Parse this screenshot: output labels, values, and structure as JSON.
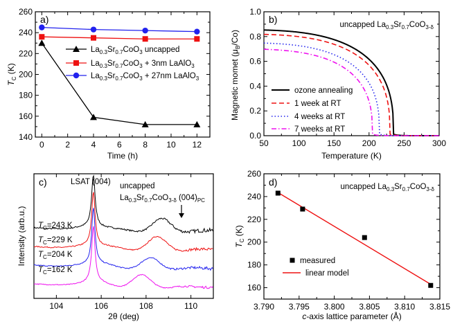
{
  "chart_data": [
    {
      "id": "a",
      "panel_label": "a)",
      "type": "line",
      "xlabel": "Time (h)",
      "ylabel_main": "T",
      "ylabel_sub": "C",
      "ylabel_unit": " (K)",
      "xlim": [
        -0.5,
        13
      ],
      "ylim": [
        140,
        260
      ],
      "xticks": [
        0,
        2,
        4,
        6,
        8,
        10,
        12
      ],
      "yticks": [
        140,
        160,
        180,
        200,
        220,
        240,
        260
      ],
      "x_minor": [
        1,
        3,
        5,
        7,
        9,
        11
      ],
      "y_minor": [
        150,
        170,
        190,
        210,
        230,
        250
      ],
      "legend_loc": "center-right",
      "series": [
        {
          "name": "uncapped",
          "legend_parts": [
            "La",
            "0.3",
            "Sr",
            "0.7",
            "CoO",
            "3",
            "   uncapped"
          ],
          "color": "#000000",
          "marker": "triangle",
          "x": [
            0,
            4,
            8,
            12
          ],
          "y": [
            230,
            159,
            152,
            152
          ]
        },
        {
          "name": "+ 3nm LaAlO3",
          "legend_parts": [
            "La",
            "0.3",
            "Sr",
            "0.7",
            "CoO",
            "3",
            " + 3nm LaAlO",
            "3",
            ""
          ],
          "color": "#ee1111",
          "marker": "square",
          "x": [
            0,
            4,
            8,
            12
          ],
          "y": [
            236,
            235,
            234,
            234
          ]
        },
        {
          "name": "+ 27nm LaAlO3",
          "legend_parts": [
            "La",
            "0.3",
            "Sr",
            "0.7",
            "CoO",
            "3",
            " + 27nm LaAlO",
            "3",
            ""
          ],
          "color": "#2222ee",
          "marker": "circle",
          "x": [
            0,
            4,
            8,
            12
          ],
          "y": [
            245,
            243,
            242,
            241
          ]
        }
      ]
    },
    {
      "id": "b",
      "panel_label": "b)",
      "type": "line",
      "xlabel": "Temperature (K)",
      "ylabel_main": "Magnetic momet (μ",
      "ylabel_sub": "B",
      "ylabel_unit": "/Co)",
      "xlim": [
        50,
        300
      ],
      "ylim": [
        0,
        1.0
      ],
      "xticks": [
        50,
        100,
        150,
        200,
        250,
        300
      ],
      "yticks": [
        0.0,
        0.2,
        0.4,
        0.6,
        0.8,
        1.0
      ],
      "ytick_labels": [
        "0.0",
        "0.2",
        "0.4",
        "0.6",
        "0.8",
        "1.0"
      ],
      "x_minor": [
        75,
        125,
        175,
        225,
        275
      ],
      "y_minor": [
        0.1,
        0.3,
        0.5,
        0.7,
        0.9
      ],
      "annotation_parts": [
        "uncapped La",
        "0.3",
        "Sr",
        "0.7",
        "CoO",
        "3-δ"
      ],
      "legend_loc": "lower-left",
      "series": [
        {
          "name": "ozone annealing",
          "color": "#000000",
          "dash": "solid",
          "Tc": 235,
          "M0": 0.855
        },
        {
          "name": "1 week at RT",
          "color": "#ee1111",
          "dash": "dashed",
          "Tc": 230,
          "M0": 0.82
        },
        {
          "name": "4 weeks at RT",
          "color": "#2222ee",
          "dash": "dotted",
          "Tc": 215,
          "M0": 0.75
        },
        {
          "name": "7 weeks at RT",
          "color": "#ee11ee",
          "dash": "dashdot",
          "Tc": 205,
          "M0": 0.7
        }
      ]
    },
    {
      "id": "c",
      "panel_label": "c)",
      "type": "line",
      "xlabel": "2θ (deg)",
      "ylabel": "Intensity (arb.u.)",
      "xlim": [
        103,
        111
      ],
      "xticks": [
        104,
        106,
        108,
        110
      ],
      "x_minor": [
        103,
        105,
        107,
        109,
        111
      ],
      "y_tick_labels_shown": false,
      "annotation_lsat": "LSAT (004)",
      "annotation_film_line1": "uncapped",
      "annotation_film_parts": [
        "La",
        "0.3",
        "Sr",
        "0.7",
        "CoO",
        "3-δ",
        " (004)",
        "PC"
      ],
      "series": [
        {
          "label_main": "T",
          "label_sub": "C",
          "label_rest": "=243 K",
          "color": "#000000",
          "offset": 3.3,
          "film_peak_2theta": 108.7,
          "film_amp": 0.52,
          "noise": 0.07
        },
        {
          "label_main": "T",
          "label_sub": "C",
          "label_rest": "=229 K",
          "color": "#ee1111",
          "offset": 2.4,
          "film_peak_2theta": 108.5,
          "film_amp": 0.55,
          "noise": 0.05
        },
        {
          "label_main": "T",
          "label_sub": "C",
          "label_rest": "=204 K",
          "color": "#2222ee",
          "offset": 1.5,
          "film_peak_2theta": 108.2,
          "film_amp": 0.42,
          "noise": 0.05
        },
        {
          "label_main": "T",
          "label_sub": "C",
          "label_rest": "=162 K",
          "color": "#ee11ee",
          "offset": 0.6,
          "film_peak_2theta": 107.8,
          "film_amp": 0.5,
          "noise": 0.04
        }
      ],
      "substrate_peak_2theta": 105.65
    },
    {
      "id": "d",
      "panel_label": "d)",
      "type": "scatter",
      "xlabel_italic": "c",
      "xlabel_rest": "-axis lattice parameter (Å)",
      "ylabel_main": "T",
      "ylabel_sub": "C",
      "ylabel_unit": " (K)",
      "xlim": [
        3.79,
        3.815
      ],
      "ylim": [
        150,
        260
      ],
      "xticks": [
        3.79,
        3.795,
        3.8,
        3.805,
        3.81,
        3.815
      ],
      "xtick_labels": [
        "3.790",
        "3.795",
        "3.800",
        "3.805",
        "3.810",
        "3.815"
      ],
      "yticks": [
        160,
        180,
        200,
        220,
        240,
        260
      ],
      "x_minor": [
        3.7925,
        3.7975,
        3.8025,
        3.8075,
        3.8125
      ],
      "y_minor": [
        170,
        190,
        210,
        230,
        250
      ],
      "annotation_parts": [
        "uncapped La",
        "0.3",
        "Sr",
        "0.7",
        "CoO",
        "3-δ"
      ],
      "legend_loc": "lower-left",
      "measured": {
        "name": "measured",
        "color": "#000000",
        "x": [
          3.792,
          3.7955,
          3.8043,
          3.8137
        ],
        "y": [
          243,
          229,
          204,
          162
        ]
      },
      "fit": {
        "name": "linear model",
        "color": "#ee1111",
        "x": [
          3.792,
          3.8137
        ],
        "y": [
          243.5,
          163
        ]
      }
    }
  ]
}
